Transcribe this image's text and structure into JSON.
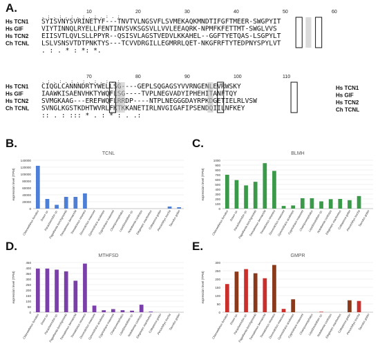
{
  "panels": {
    "a": "A.",
    "b": "B.",
    "c": "C.",
    "d": "D.",
    "e": "E."
  },
  "alignment": {
    "blocks": [
      {
        "ruler": [
          "10",
          "20",
          "30",
          "40",
          "50",
          "60"
        ],
        "rows": [
          {
            "name": "Hs TCN1",
            "seq": "SYISVNYSVRINETYF---TNVTVLNGSVFLSVMEKAQKMNDTIFGFTMEER-SWGPYIT"
          },
          {
            "name": "Hs GIF",
            "seq": "VIYTINNQLRYELLFENTINVSVKSGSVLLVVLEEAQRK-NPMFKFETTMT-SWGLVVS"
          },
          {
            "name": "Hs TCN2",
            "seq": "EIISVTLQVLSLLPPYR--QSISVLAGSTVEDVLKKAHEL--GGFTYETQAS-LSGPYLT"
          },
          {
            "name": "Ch TCNL",
            "seq": "LSLVSNSVTDTPNKTYS---TCVVDRGILLEGMRRLQET-NKGFRFTYTEDPNYSPYLVT"
          }
        ],
        "conservation": "             .                 :     .   *         :   *: *.   "
      },
      {
        "ruler": [
          "70",
          "80",
          "90",
          "100",
          "110"
        ],
        "rows": [
          {
            "name": "Hs TCN1",
            "seq": "CIQGLCANNNDRTYWELLSG----GEPLSQGAGSYVVRNGENLEVRWSKY"
          },
          {
            "name": "Hs GIF",
            "seq": "IAAWKISAENVHKTYWQFLSG----TVPLNEGVADYIPHEHITANFTQY"
          },
          {
            "name": "Hs TCN2",
            "seq": "SVMGKAAG---EREFWQFLRRDP----NTPLNEGGGDAYRPKDGETIELRLVSW"
          },
          {
            "name": "Ch TCNL",
            "seq": "SVNGLKGSTKDHTWVRLFKTKKANETIRLNVGIGAFIPSENDQIILNFKEY"
          }
        ],
        "conservation": " ::   .     :   :::  *     .    :   *  :    .     .:    "
      }
    ],
    "legend": [
      "Hs TCN1",
      "Hs GIF",
      "Hs TCN2",
      "Ch TCNL"
    ]
  },
  "chart_data": [
    {
      "type": "bar",
      "title": "TCNL",
      "ylabel": "expression level (TPM)",
      "ylim": [
        0,
        140000
      ],
      "yticks": [
        "0",
        "20000",
        "40000",
        "60000",
        "80000",
        "100000",
        "120000",
        "140000"
      ],
      "color": "#4d7fd6",
      "categories": [
        "Chloroethinus furcatus",
        "Draco sp.",
        "Paracheirodon sp.",
        "Pagothenia borchgrevinki",
        "Trematomus bernacchii",
        "Trematomus newnesi",
        "Dissostichus mawsoni",
        "Gymnodraco acuticeps",
        "Cygnodraco mawsoni",
        "Champsocephalus",
        "Lepidonotothen sp.",
        "Notothenia coriiceps",
        "Eleginops maclovinus",
        "Cottoperca gobio",
        "Percichthys trucha",
        "Taurulus gobio"
      ],
      "values": [
        124000,
        28000,
        11000,
        34000,
        34000,
        44000,
        0,
        0,
        0,
        0,
        0,
        0,
        0,
        0,
        6000,
        4000
      ]
    },
    {
      "type": "bar",
      "title": "BLMH",
      "ylabel": "expression level (TPM)",
      "ylim": [
        0,
        1000
      ],
      "yticks": [
        "0",
        "100",
        "200",
        "300",
        "400",
        "500",
        "600",
        "700",
        "800",
        "900",
        "1000"
      ],
      "color": "#3a9a4a",
      "categories": [
        "Chloroethinus furcatus",
        "Draco sp.",
        "Paracheirodon sp.",
        "Pagothenia borchgrevinki",
        "Trematomus bernacchii",
        "Trematomus newnesi",
        "Dissostichus mawsoni",
        "Gymnodraco acuticeps",
        "Cygnodraco mawsoni",
        "Champsocephalus",
        "Lepidonotothen sp.",
        "Notothenia coriiceps",
        "Eleginops maclovinus",
        "Cottoperca gobio",
        "Percichthys trucha",
        "Taurulus gobio"
      ],
      "values": [
        700,
        590,
        480,
        555,
        940,
        780,
        55,
        65,
        215,
        215,
        150,
        195,
        200,
        175,
        260,
        0
      ]
    },
    {
      "type": "bar",
      "title": "MTHFSD",
      "ylabel": "expression level (TPM)",
      "ylim": [
        0,
        450
      ],
      "yticks": [
        "0",
        "50",
        "100",
        "150",
        "200",
        "250",
        "300",
        "350",
        "400",
        "450"
      ],
      "color": "#7a3fa8",
      "categories": [
        "Chloroethinus furcatus",
        "Draco sp.",
        "Paracheirodon sp.",
        "Pagothenia borchgrevinki",
        "Trematomus bernacchii",
        "Trematomus newnesi",
        "Dissostichus mawsoni",
        "Gymnodraco acuticeps",
        "Cygnodraco mawsoni",
        "Champsocephalus",
        "Lepidonotothen sp.",
        "Notothenia coriiceps",
        "Eleginops maclovinus",
        "Cottoperca gobio",
        "Percichthys trucha",
        "Taurulus gobio"
      ],
      "values": [
        395,
        395,
        385,
        370,
        285,
        440,
        60,
        18,
        28,
        18,
        14,
        68,
        6,
        0,
        0,
        0
      ]
    },
    {
      "type": "bar",
      "title": "GMPR",
      "ylabel": "expression level (TPM)",
      "ylim": [
        0,
        300
      ],
      "yticks": [
        "0",
        "50",
        "100",
        "150",
        "200",
        "250",
        "300"
      ],
      "series_colors": [
        "#c9302c",
        "#8a3a1a"
      ],
      "categories": [
        "Chloroethinus furcatus",
        "Draco sp.",
        "Paracheirodon sp.",
        "Pagothenia borchgrevinki",
        "Trematomus bernacchii",
        "Trematomus newnesi",
        "Dissostichus mawsoni",
        "Gymnodraco acuticeps",
        "Cygnodraco mawsoni",
        "Champsocephalus",
        "Lepidonotothen sp.",
        "Notothenia coriiceps",
        "Eleginops maclovinus",
        "Cottoperca gobio",
        "Percichthys trucha",
        "Taurulus gobio"
      ],
      "values": [
        170,
        245,
        260,
        235,
        205,
        285,
        20,
        78,
        0,
        0,
        3,
        0,
        0,
        72,
        68,
        0
      ]
    }
  ]
}
